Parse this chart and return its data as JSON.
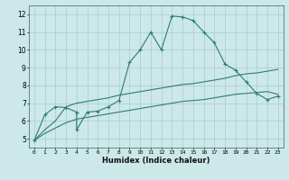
{
  "xlabel": "Humidex (Indice chaleur)",
  "background_color": "#cce8e8",
  "grid_color": "#aacccc",
  "line_color": "#2e7d6e",
  "xlim": [
    -0.5,
    23.5
  ],
  "ylim": [
    4.5,
    12.5
  ],
  "xticks": [
    0,
    1,
    2,
    3,
    4,
    5,
    6,
    7,
    8,
    9,
    10,
    11,
    12,
    13,
    14,
    15,
    16,
    17,
    18,
    19,
    20,
    21,
    22,
    23
  ],
  "yticks": [
    5,
    6,
    7,
    8,
    9,
    10,
    11,
    12
  ],
  "line1_x": [
    0,
    1,
    2,
    3,
    4,
    4,
    5,
    6,
    7,
    8,
    9,
    10,
    11,
    12,
    13,
    14,
    15,
    16,
    17,
    18,
    19,
    20,
    21,
    22,
    23
  ],
  "line1_y": [
    4.9,
    6.35,
    6.8,
    6.75,
    6.5,
    5.5,
    6.5,
    6.55,
    6.8,
    7.15,
    9.3,
    10.0,
    11.0,
    10.0,
    11.9,
    11.85,
    11.65,
    11.0,
    10.4,
    9.2,
    8.85,
    8.2,
    7.55,
    7.2,
    7.4
  ],
  "line2_x": [
    0,
    1,
    2,
    3,
    4,
    5,
    6,
    7,
    8,
    9,
    10,
    11,
    12,
    13,
    14,
    15,
    16,
    17,
    18,
    19,
    20,
    21,
    22,
    23
  ],
  "line2_y": [
    4.9,
    5.5,
    6.0,
    6.8,
    7.0,
    7.1,
    7.2,
    7.3,
    7.45,
    7.55,
    7.65,
    7.75,
    7.85,
    7.95,
    8.05,
    8.1,
    8.2,
    8.3,
    8.4,
    8.55,
    8.65,
    8.7,
    8.8,
    8.9
  ],
  "line3_x": [
    0,
    1,
    2,
    3,
    4,
    5,
    6,
    7,
    8,
    9,
    10,
    11,
    12,
    13,
    14,
    15,
    16,
    17,
    18,
    19,
    20,
    21,
    22,
    23
  ],
  "line3_y": [
    4.9,
    5.3,
    5.6,
    5.9,
    6.1,
    6.2,
    6.3,
    6.4,
    6.5,
    6.6,
    6.7,
    6.8,
    6.9,
    7.0,
    7.1,
    7.15,
    7.2,
    7.3,
    7.4,
    7.5,
    7.55,
    7.6,
    7.65,
    7.5
  ]
}
